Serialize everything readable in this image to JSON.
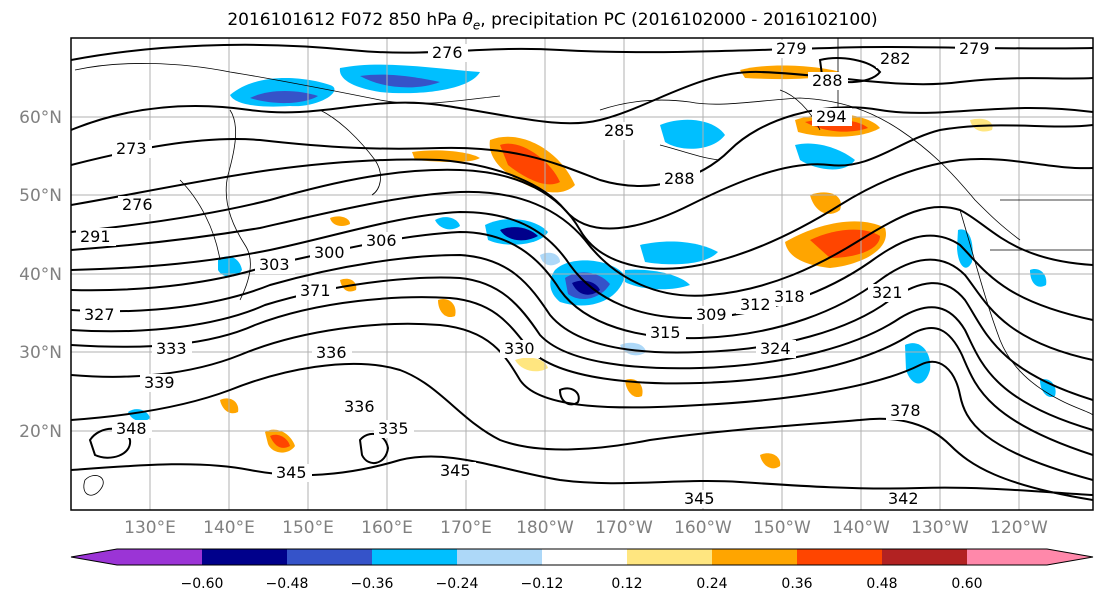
{
  "title": {
    "prefix": "2016101612 F072 850 hPa ",
    "theta": "θ",
    "theta_sub": "e",
    "suffix": ", precipitation PC (2016102000 - 2016102100)"
  },
  "lat_labels": [
    "60°N",
    "50°N",
    "40°N",
    "30°N",
    "20°N"
  ],
  "lon_labels": [
    "130°E",
    "140°E",
    "150°E",
    "160°E",
    "170°E",
    "180°W",
    "170°W",
    "160°W",
    "150°W",
    "140°W",
    "130°W",
    "120°W"
  ],
  "contour_labels": [
    "276",
    "279",
    "282",
    "279",
    "288",
    "285",
    "294",
    "273",
    "276",
    "288",
    "291",
    "303",
    "300",
    "306",
    "309",
    "312",
    "315",
    "318",
    "321",
    "324",
    "327",
    "330",
    "333",
    "336",
    "339",
    "336",
    "345",
    "348",
    "345",
    "342",
    "345",
    "378",
    "371",
    "335"
  ],
  "colorbar": {
    "tick_labels": [
      "−0.60",
      "−0.48",
      "−0.36",
      "−0.24",
      "−0.12",
      "0.12",
      "0.24",
      "0.36",
      "0.48",
      "0.60"
    ],
    "colors": [
      "#9b34d6",
      "#00008b",
      "#3553c9",
      "#00bfff",
      "#add8f8",
      "#ffffff",
      "#ffe680",
      "#ffa500",
      "#ff4500",
      "#b22222",
      "#ff88aa",
      "#ff88aa"
    ]
  },
  "colors": {
    "coast": "#000000",
    "grid": "#b0b0b0",
    "axis_label": "#808080"
  }
}
